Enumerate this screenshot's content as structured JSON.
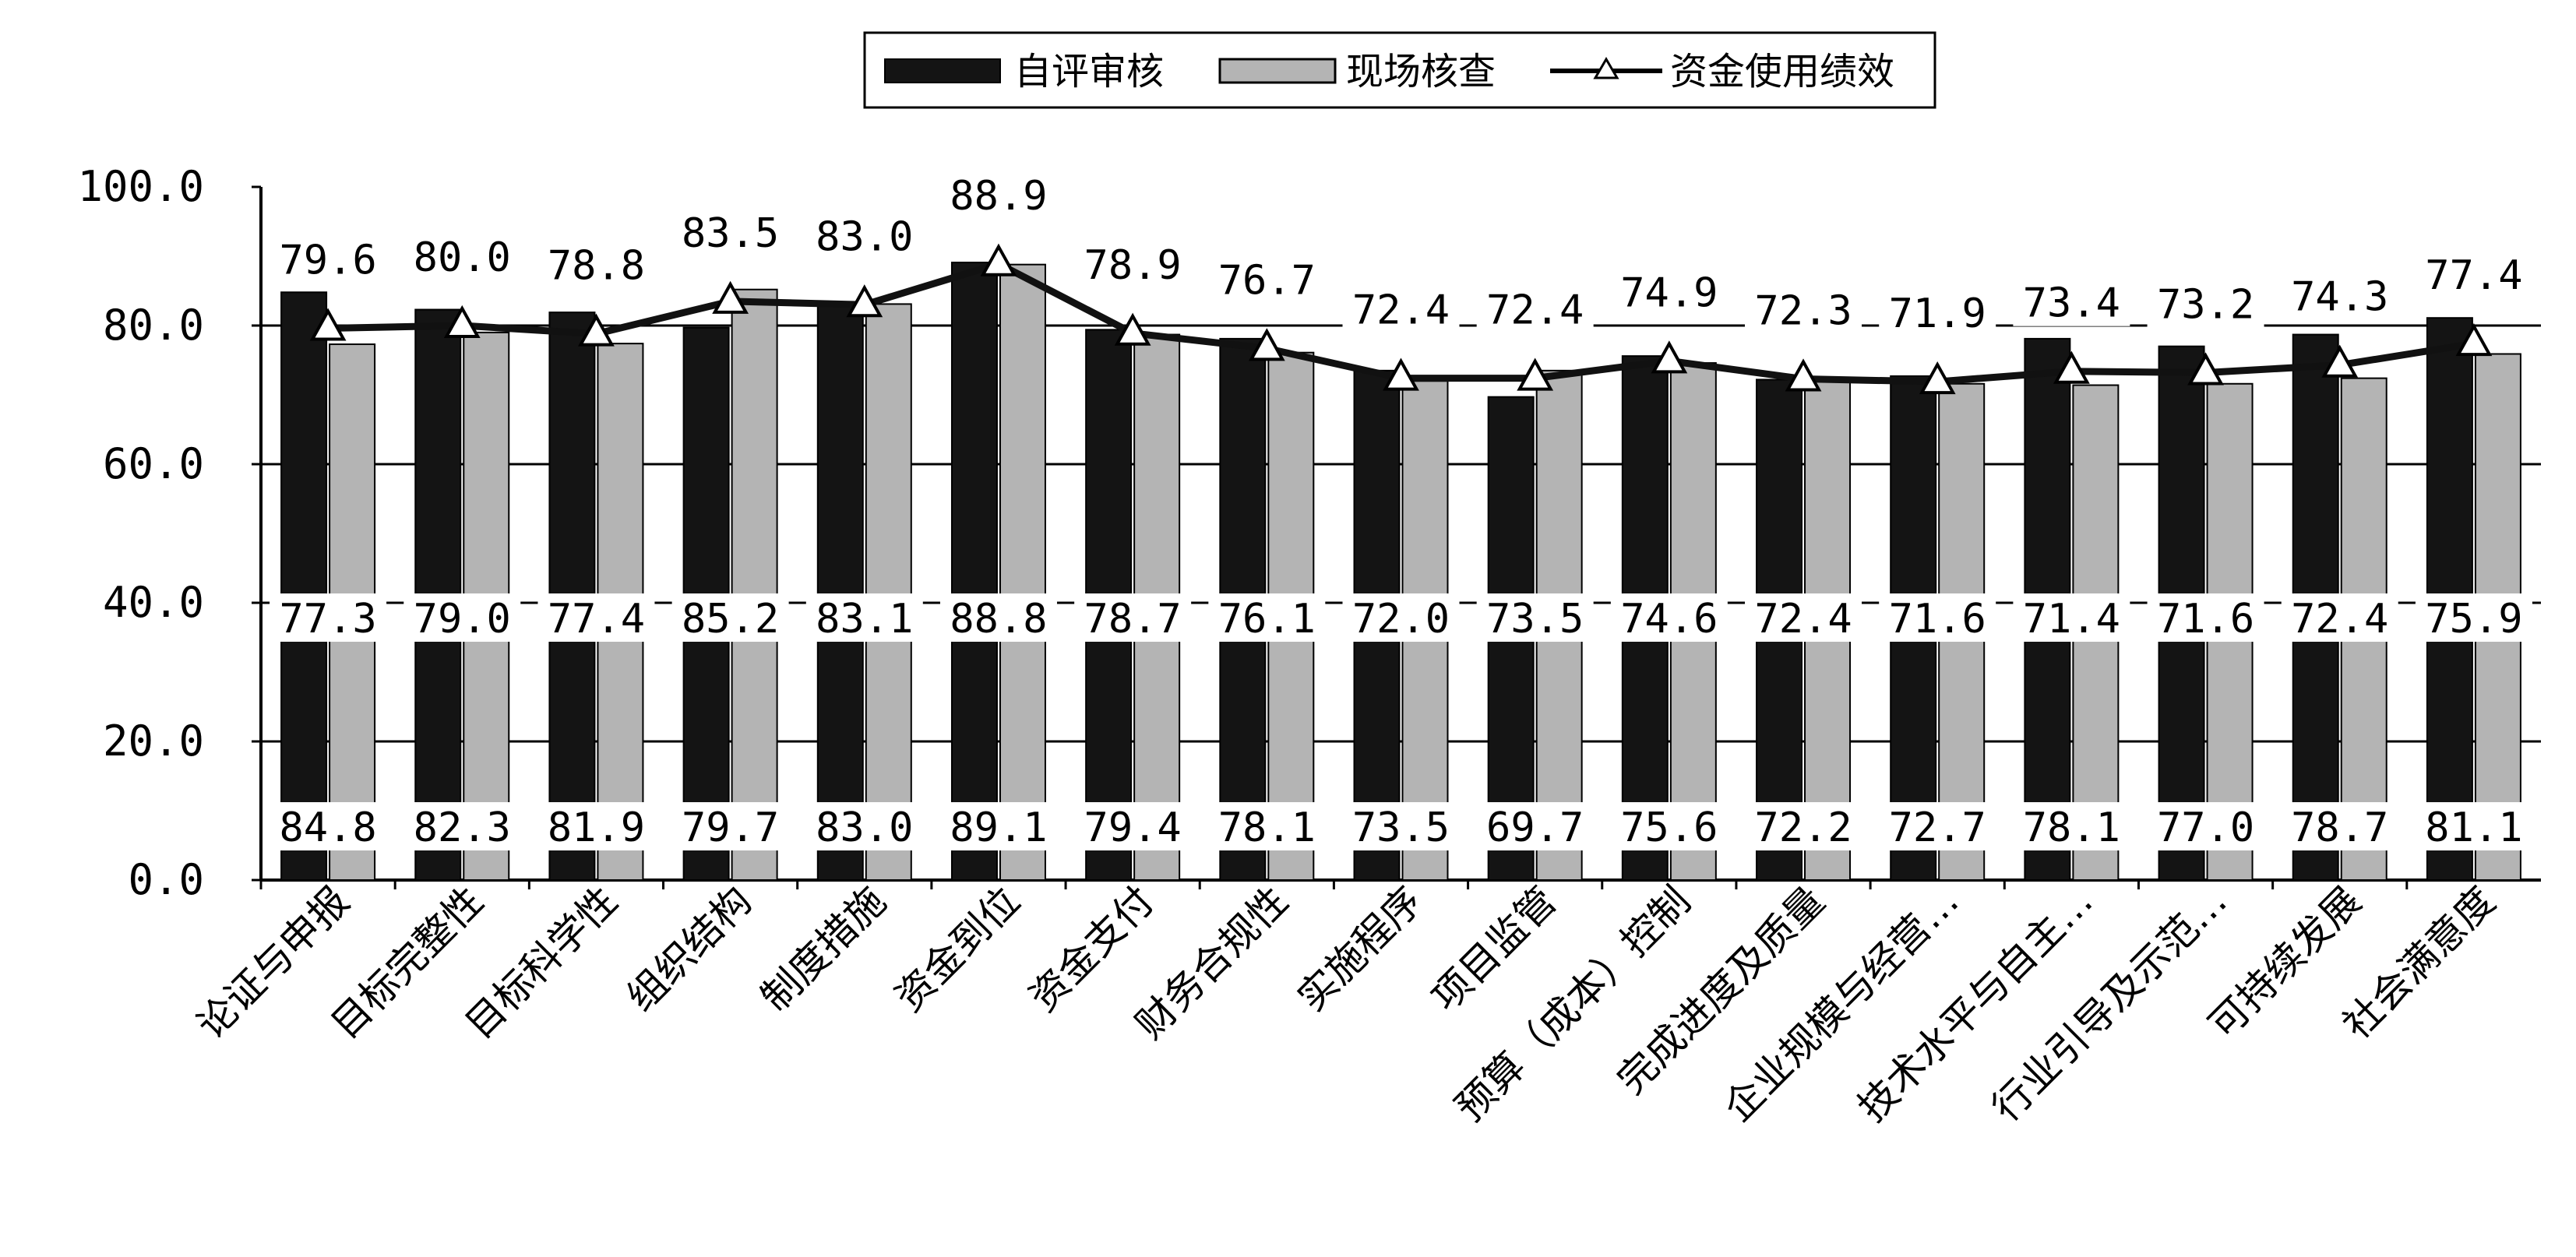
{
  "chart_data": {
    "type": "bar",
    "categories": [
      "论证与申报",
      "目标完整性",
      "目标科学性",
      "组织结构",
      "制度措施",
      "资金到位",
      "资金支付",
      "财务合规性",
      "实施程序",
      "项目监管",
      "预算（成本）控制",
      "完成进度及质量",
      "企业规模与经营…",
      "技术水平与自主…",
      "行业引导及示范…",
      "可持续发展",
      "社会满意度"
    ],
    "series": [
      {
        "name": "自评审核",
        "type": "bar",
        "color": "#141414",
        "values": [
          84.8,
          82.3,
          81.9,
          79.7,
          83.0,
          89.1,
          79.4,
          78.1,
          73.5,
          69.7,
          75.6,
          72.2,
          72.7,
          78.1,
          77.0,
          78.7,
          81.1
        ]
      },
      {
        "name": "现场核查",
        "type": "bar",
        "color": "#b4b4b4",
        "values": [
          77.3,
          79.0,
          77.4,
          85.2,
          83.1,
          88.8,
          78.7,
          76.1,
          72.0,
          73.5,
          74.6,
          72.4,
          71.6,
          71.4,
          71.6,
          72.4,
          75.9
        ]
      },
      {
        "name": "资金使用绩效",
        "type": "line",
        "marker": "triangle",
        "color": "#111111",
        "values": [
          79.6,
          80.0,
          78.8,
          83.5,
          83.0,
          88.9,
          78.9,
          76.7,
          72.4,
          72.4,
          74.9,
          72.3,
          71.9,
          73.4,
          73.2,
          74.3,
          77.4
        ]
      }
    ],
    "y_ticks": [
      "0.0",
      "20.0",
      "40.0",
      "60.0",
      "80.0",
      "100.0"
    ],
    "ylim": [
      0,
      100
    ],
    "grid": true,
    "legend_position": "top-center",
    "title": "",
    "xlabel": "",
    "ylabel": ""
  }
}
